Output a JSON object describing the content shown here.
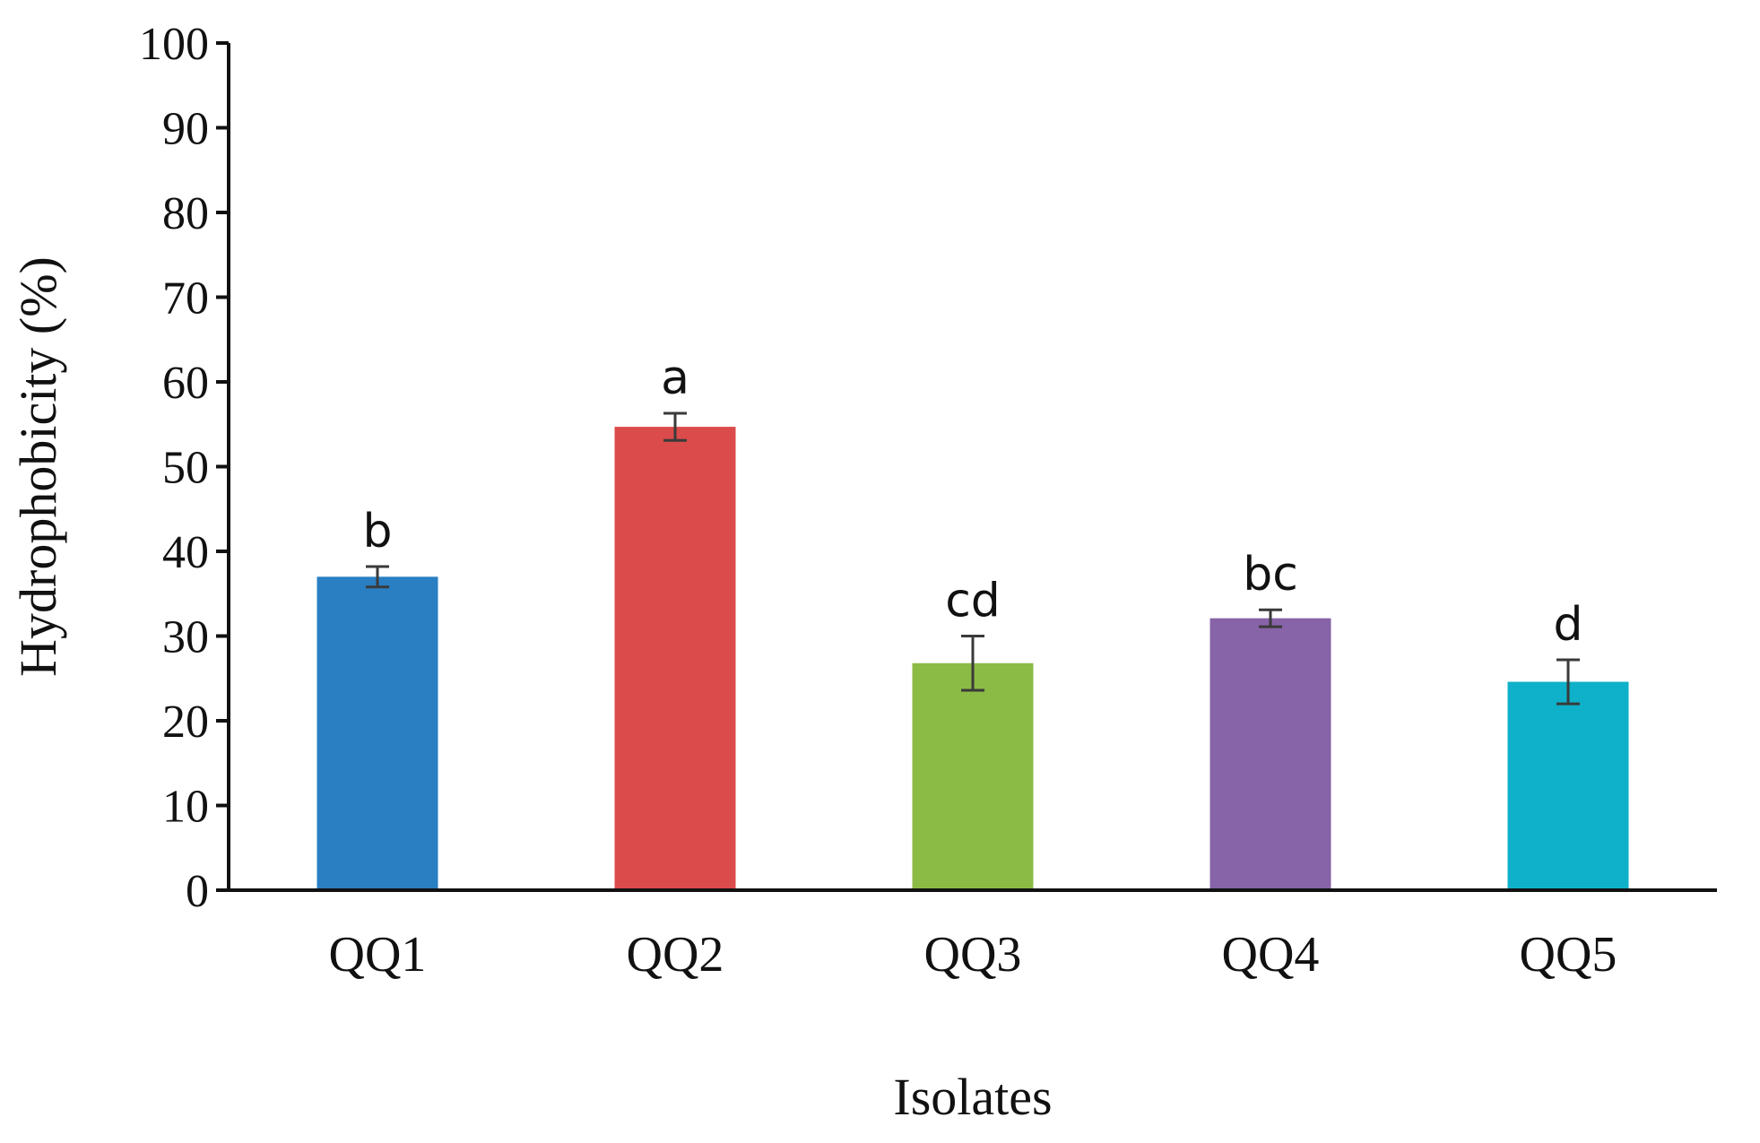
{
  "chart_data": {
    "type": "bar",
    "title": "",
    "xlabel": "Isolates",
    "ylabel": "Hydrophobicity (%)",
    "ylim": [
      0,
      100
    ],
    "yticks": [
      0,
      10,
      20,
      30,
      40,
      50,
      60,
      70,
      80,
      90,
      100
    ],
    "categories": [
      "QQ1",
      "QQ2",
      "QQ3",
      "QQ4",
      "QQ5"
    ],
    "values": [
      37,
      54.7,
      26.8,
      32.1,
      24.6
    ],
    "errors": [
      1.2,
      1.6,
      3.2,
      1.0,
      2.6
    ],
    "significance_letters": [
      "b",
      "a",
      "cd",
      "bc",
      "d"
    ],
    "colors": [
      "#2a7fc2",
      "#dc4b4b",
      "#8cbb45",
      "#8763a8",
      "#0fb0c9"
    ],
    "grid": false,
    "legend": "none"
  }
}
